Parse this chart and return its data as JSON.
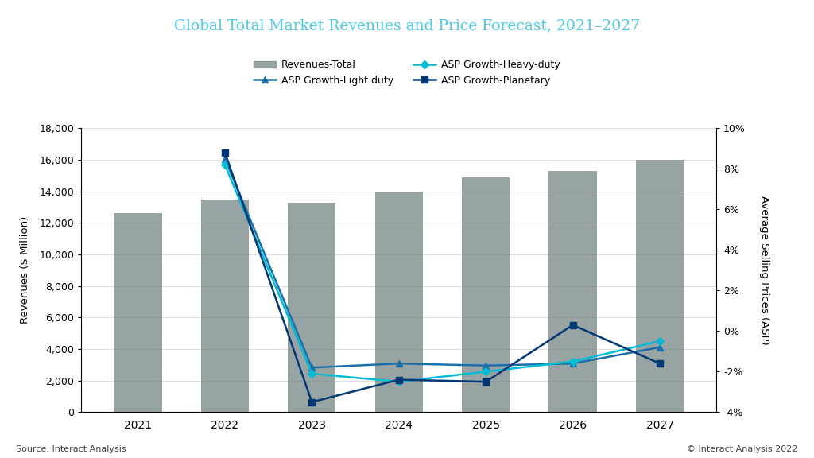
{
  "title": "Global Total Market Revenues and Price Forecast, 2021–2027",
  "title_color": "#4DC8E8",
  "years": [
    2021,
    2022,
    2023,
    2024,
    2025,
    2026,
    2027
  ],
  "bar_values": [
    12600,
    13500,
    13300,
    14000,
    14900,
    15300,
    16000
  ],
  "bar_color": "#7F8C8D",
  "asp_light_duty": [
    null,
    8.5,
    -1.8,
    -1.6,
    -1.7,
    -1.6,
    -0.8
  ],
  "asp_heavy_duty": [
    null,
    8.2,
    -2.1,
    -2.5,
    -2.0,
    -1.5,
    -0.5
  ],
  "asp_planetary": [
    null,
    8.8,
    -3.5,
    -2.4,
    -2.5,
    0.3,
    -1.6
  ],
  "color_light_duty": "#1B6FA8",
  "color_heavy_duty": "#00BCD4",
  "color_planetary": "#003875",
  "marker_light_duty": "^",
  "marker_heavy_duty": "D",
  "marker_planetary": "s",
  "ylabel_left": "Revenues ($ Million)",
  "ylabel_right": "Average Selling Prices (ASP)",
  "ylim_left": [
    0,
    18000
  ],
  "ylim_right": [
    -4,
    10
  ],
  "yticks_left": [
    0,
    2000,
    4000,
    6000,
    8000,
    10000,
    12000,
    14000,
    16000,
    18000
  ],
  "yticks_right": [
    -4,
    -2,
    0,
    2,
    4,
    6,
    8,
    10
  ],
  "source_text": "Source: Interact Analysis",
  "copyright_text": "© Interact Analysis 2022",
  "legend_labels": [
    "Revenues-Total",
    "ASP Growth-Light duty",
    "ASP Growth-Heavy-duty",
    "ASP Growth-Planetary"
  ],
  "background_color": "#FFFFFF",
  "grid_color": "#DDDDDD"
}
